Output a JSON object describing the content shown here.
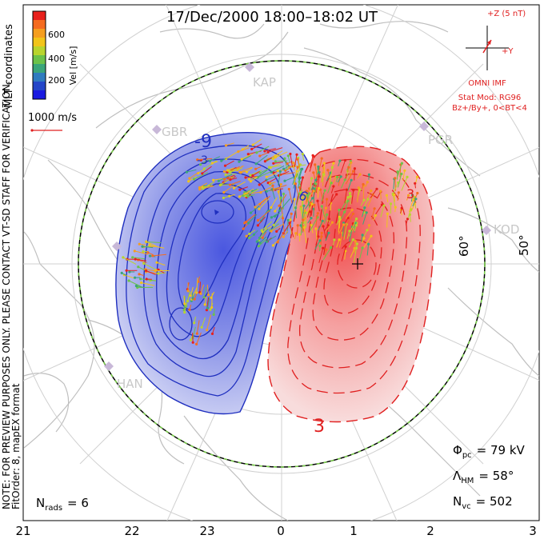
{
  "title": "17/Dec/2000  18:00–18:02  UT",
  "side_notes": {
    "coords": "MLT coordinates",
    "note": "NOTE: FOR PREVIEW PURPOSES ONLY. PLEASE CONTACT VT-SD STAFF FOR VERIFICATION.",
    "fit": "FitOrder: 8, mapEX format"
  },
  "colorbar": {
    "label": "Vel [m/s]",
    "ticks": [
      "600",
      "400",
      "200"
    ],
    "colors": [
      "#e8201c",
      "#f56b1f",
      "#f59e1f",
      "#f2c419",
      "#b9d42d",
      "#6cc24a",
      "#3aa57a",
      "#2f7bbf",
      "#2446c8",
      "#1a1ae0"
    ]
  },
  "ref_vector": "1000 m/s",
  "imf": {
    "z_label": "+Z (5 nT)",
    "y_label": "+Y",
    "source": "OMNI IMF",
    "model": "Stat Mod: RG96",
    "conditions": "Bz+/By+, 0<BT<4"
  },
  "stations": [
    "KAP",
    "GBR",
    "PGR",
    "KOD",
    "HAN"
  ],
  "lat_labels": [
    "60°",
    "50°"
  ],
  "contour_labels": [
    "-9",
    "-3",
    "6",
    "3",
    "3"
  ],
  "stats": {
    "phi_symbol": "Φ",
    "phi_sub": "pc",
    "phi_value": "= 79 kV",
    "lambda_symbol": "Λ",
    "lambda_sub": "HM",
    "lambda_value": "= 58°",
    "nvc_symbol": "N",
    "nvc_sub": "vc",
    "nvc_value": "= 502",
    "nrads_symbol": "N",
    "nrads_sub": "rads",
    "nrads_value": "= 6"
  },
  "mlt_axis": [
    "21",
    "22",
    "23",
    "0",
    "1",
    "2",
    "3"
  ],
  "accent": {
    "red": "#e02020",
    "blue": "#1f2fbf",
    "neg_fill": "#7a86e8",
    "pos_fill": "#f06060"
  }
}
